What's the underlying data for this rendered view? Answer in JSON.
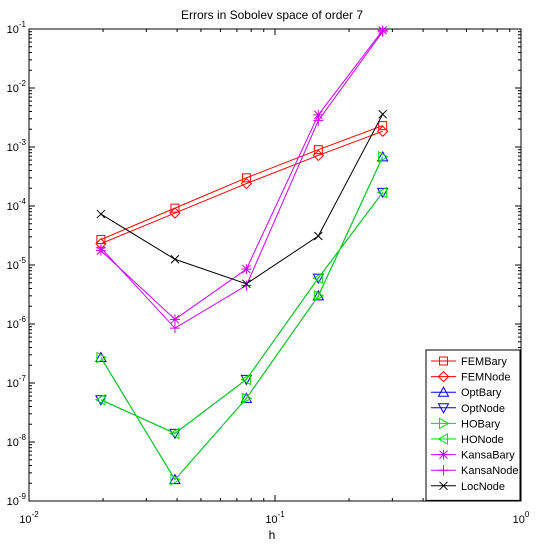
{
  "chart_data": {
    "type": "line",
    "title": "Errors in Sobolev space of order 7",
    "xlabel": "h",
    "ylabel": "",
    "xscale": "log",
    "yscale": "log",
    "xlim": [
      0.01,
      1
    ],
    "ylim": [
      1e-09,
      0.1
    ],
    "x_tick_labels": [
      {
        "value": 0.01,
        "base": "10",
        "exp": "-2"
      },
      {
        "value": 0.1,
        "base": "10",
        "exp": "-1"
      },
      {
        "value": 1,
        "base": "10",
        "exp": "0"
      }
    ],
    "y_tick_labels": [
      {
        "value": 1e-09,
        "base": "10",
        "exp": "-9"
      },
      {
        "value": 1e-08,
        "base": "10",
        "exp": "-8"
      },
      {
        "value": 1e-07,
        "base": "10",
        "exp": "-7"
      },
      {
        "value": 1e-06,
        "base": "10",
        "exp": "-6"
      },
      {
        "value": 1e-05,
        "base": "10",
        "exp": "-5"
      },
      {
        "value": 0.0001,
        "base": "10",
        "exp": "-4"
      },
      {
        "value": 0.001,
        "base": "10",
        "exp": "-3"
      },
      {
        "value": 0.01,
        "base": "10",
        "exp": "-2"
      },
      {
        "value": 0.1,
        "base": "10",
        "exp": "-1"
      }
    ],
    "grid": false,
    "legend_position": "bottom-right",
    "x": [
      0.0196,
      0.0392,
      0.0765,
      0.15,
      0.274
    ],
    "series": [
      {
        "name": "FEMBary",
        "color": "#ff0000",
        "marker": "square",
        "values": [
          2.7e-05,
          9.2e-05,
          0.0003,
          0.0009,
          0.0023
        ]
      },
      {
        "name": "FEMNode",
        "color": "#ff0000",
        "marker": "diamond",
        "values": [
          2.3e-05,
          7.6e-05,
          0.00024,
          0.00072,
          0.00185
        ]
      },
      {
        "name": "OptBary",
        "color": "#0000ff",
        "marker": "triangle-up",
        "values": [
          2.7e-07,
          2.3e-09,
          5.5e-08,
          3e-06,
          0.00068
        ]
      },
      {
        "name": "OptNode",
        "color": "#0000ff",
        "marker": "triangle-down",
        "values": [
          5.2e-08,
          1.4e-08,
          1.15e-07,
          6e-06,
          0.00017
        ]
      },
      {
        "name": "HOBary",
        "color": "#00dd00",
        "marker": "triangle-right",
        "values": [
          2.7e-07,
          2.3e-09,
          5.5e-08,
          3e-06,
          0.00068
        ]
      },
      {
        "name": "HONode",
        "color": "#00dd00",
        "marker": "triangle-left",
        "values": [
          5.2e-08,
          1.4e-08,
          1.15e-07,
          6e-06,
          0.00017
        ]
      },
      {
        "name": "KansaBary",
        "color": "#cc00ff",
        "marker": "star",
        "values": [
          1.75e-05,
          1.2e-06,
          8.5e-06,
          0.0035,
          0.095
        ]
      },
      {
        "name": "KansaNode",
        "color": "#cc00ff",
        "marker": "plus",
        "values": [
          1.95e-05,
          8.5e-07,
          4.5e-06,
          0.0028,
          0.09
        ]
      },
      {
        "name": "LocNode",
        "color": "#000000",
        "marker": "x",
        "values": [
          7.3e-05,
          1.25e-05,
          4.8e-06,
          3.1e-05,
          0.0036
        ]
      }
    ]
  }
}
